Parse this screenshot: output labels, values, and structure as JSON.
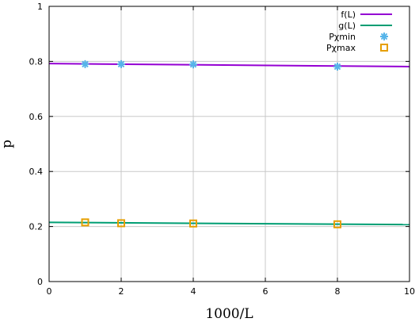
{
  "chart_data": {
    "type": "line",
    "xlabel": "1000/L",
    "ylabel": "p",
    "xlim": [
      0,
      10
    ],
    "ylim": [
      0,
      1
    ],
    "xticks": [
      "0",
      "2",
      "4",
      "6",
      "8",
      "10"
    ],
    "yticks": [
      "0",
      "0.2",
      "0.4",
      "0.6",
      "0.8",
      "1"
    ],
    "grid": true,
    "legend_position": "top-right",
    "series": [
      {
        "name": "f(L)",
        "kind": "line",
        "color": "#9400d3",
        "x": [
          0,
          10
        ],
        "y": [
          0.792,
          0.781
        ]
      },
      {
        "name": "g(L)",
        "kind": "line",
        "color": "#009e73",
        "x": [
          0,
          10
        ],
        "y": [
          0.215,
          0.207
        ]
      },
      {
        "name": "Pχmin",
        "kind": "scatter",
        "marker": "star",
        "color": "#56b4e9",
        "x": [
          1,
          2,
          4,
          8
        ],
        "y": [
          0.79,
          0.79,
          0.789,
          0.781
        ]
      },
      {
        "name": "Pχmax",
        "kind": "scatter",
        "marker": "square",
        "color": "#e69f00",
        "x": [
          1,
          2,
          4,
          8
        ],
        "y": [
          0.215,
          0.212,
          0.211,
          0.208
        ]
      }
    ]
  }
}
